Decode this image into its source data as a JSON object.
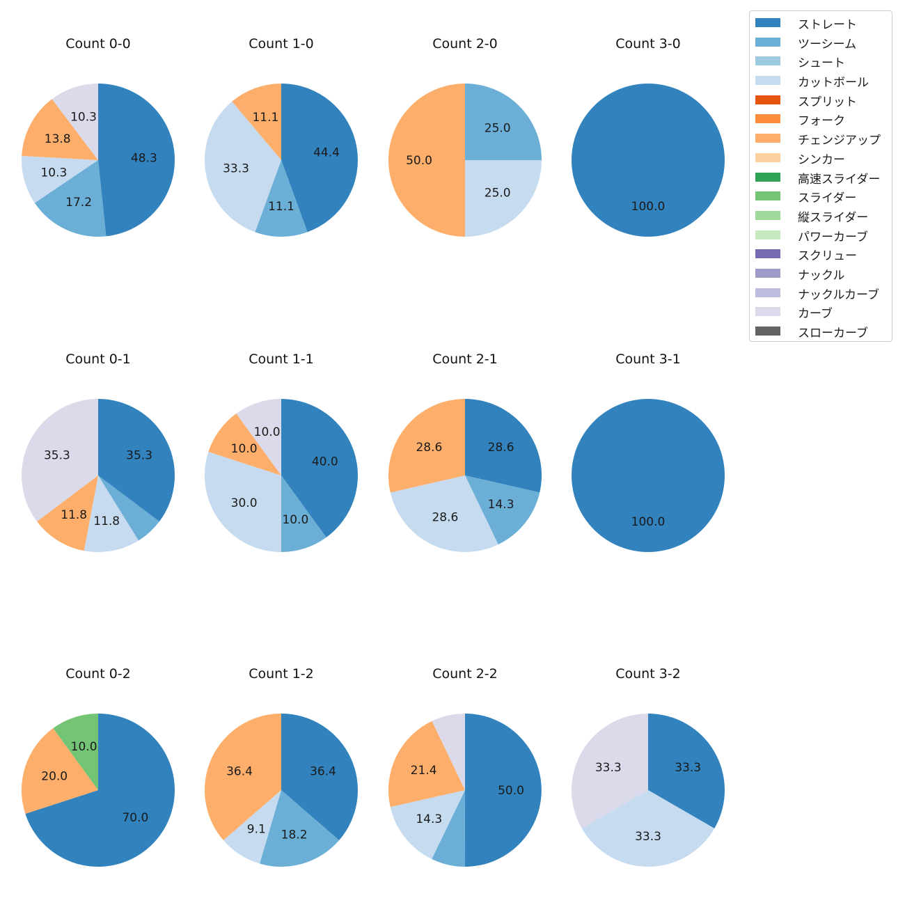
{
  "chart_data": {
    "type": "pie",
    "categories": [
      "ストレート",
      "ツーシーム",
      "シュート",
      "カットボール",
      "スプリット",
      "フォーク",
      "チェンジアップ",
      "シンカー",
      "高速スライダー",
      "スライダー",
      "縦スライダー",
      "パワーカーブ",
      "スクリュー",
      "ナックル",
      "ナックルカーブ",
      "カーブ",
      "スローカーブ"
    ],
    "colors": [
      "#3182bd",
      "#6baed6",
      "#9ecae1",
      "#c6dbef",
      "#e6550d",
      "#fd8d3c",
      "#fdae6b",
      "#fdd0a2",
      "#31a354",
      "#74c476",
      "#a1d99b",
      "#c7e9c0",
      "#756bb1",
      "#9e9ac8",
      "#bcbddc",
      "#dadaeb",
      "#636363"
    ],
    "charts": [
      {
        "title": "Count 0-0",
        "slices": [
          {
            "category": "ストレート",
            "value": 48.3
          },
          {
            "category": "ツーシーム",
            "value": 17.2
          },
          {
            "category": "カットボール",
            "value": 10.3
          },
          {
            "category": "チェンジアップ",
            "value": 13.8
          },
          {
            "category": "カーブ",
            "value": 10.3
          }
        ]
      },
      {
        "title": "Count 1-0",
        "slices": [
          {
            "category": "ストレート",
            "value": 44.4
          },
          {
            "category": "ツーシーム",
            "value": 11.1
          },
          {
            "category": "カットボール",
            "value": 33.3
          },
          {
            "category": "チェンジアップ",
            "value": 11.1
          }
        ]
      },
      {
        "title": "Count 2-0",
        "slices": [
          {
            "category": "ツーシーム",
            "value": 25.0
          },
          {
            "category": "カットボール",
            "value": 25.0
          },
          {
            "category": "チェンジアップ",
            "value": 50.0
          }
        ]
      },
      {
        "title": "Count 3-0",
        "slices": [
          {
            "category": "ストレート",
            "value": 100.0
          }
        ]
      },
      {
        "title": "Count 0-1",
        "slices": [
          {
            "category": "ストレート",
            "value": 35.3
          },
          {
            "category": "ツーシーム",
            "value": 5.9,
            "label": ""
          },
          {
            "category": "カットボール",
            "value": 11.8
          },
          {
            "category": "チェンジアップ",
            "value": 11.8
          },
          {
            "category": "カーブ",
            "value": 35.3
          }
        ]
      },
      {
        "title": "Count 1-1",
        "slices": [
          {
            "category": "ストレート",
            "value": 40.0
          },
          {
            "category": "ツーシーム",
            "value": 10.0
          },
          {
            "category": "カットボール",
            "value": 30.0
          },
          {
            "category": "チェンジアップ",
            "value": 10.0
          },
          {
            "category": "カーブ",
            "value": 10.0
          }
        ]
      },
      {
        "title": "Count 2-1",
        "slices": [
          {
            "category": "ストレート",
            "value": 28.6
          },
          {
            "category": "ツーシーム",
            "value": 14.3
          },
          {
            "category": "カットボール",
            "value": 28.6
          },
          {
            "category": "チェンジアップ",
            "value": 28.6
          }
        ]
      },
      {
        "title": "Count 3-1",
        "slices": [
          {
            "category": "ストレート",
            "value": 100.0
          }
        ]
      },
      {
        "title": "Count 0-2",
        "slices": [
          {
            "category": "ストレート",
            "value": 70.0
          },
          {
            "category": "チェンジアップ",
            "value": 20.0
          },
          {
            "category": "スライダー",
            "value": 10.0
          }
        ]
      },
      {
        "title": "Count 1-2",
        "slices": [
          {
            "category": "ストレート",
            "value": 36.4
          },
          {
            "category": "ツーシーム",
            "value": 18.2
          },
          {
            "category": "カットボール",
            "value": 9.1
          },
          {
            "category": "チェンジアップ",
            "value": 36.4
          }
        ]
      },
      {
        "title": "Count 2-2",
        "slices": [
          {
            "category": "ストレート",
            "value": 50.0
          },
          {
            "category": "ツーシーム",
            "value": 7.1,
            "label": ""
          },
          {
            "category": "カットボール",
            "value": 14.3
          },
          {
            "category": "チェンジアップ",
            "value": 21.4
          },
          {
            "category": "カーブ",
            "value": 7.1,
            "label": ""
          }
        ]
      },
      {
        "title": "Count 3-2",
        "slices": [
          {
            "category": "ストレート",
            "value": 33.3
          },
          {
            "category": "カットボール",
            "value": 33.3
          },
          {
            "category": "カーブ",
            "value": 33.3
          }
        ]
      }
    ]
  }
}
